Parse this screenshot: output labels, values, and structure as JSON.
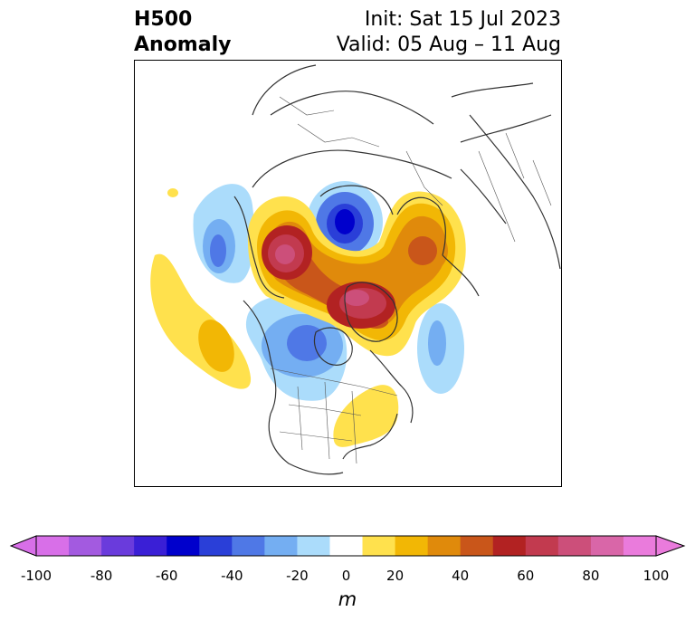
{
  "title": {
    "left_line1": "H500",
    "left_line2": "Anomaly",
    "right_line1": "Init: Sat 15 Jul 2023",
    "right_line2": "Valid: 05 Aug – 11 Aug"
  },
  "colorbar": {
    "unit": "m",
    "ticks": [
      "-100",
      "-80",
      "-60",
      "-40",
      "-20",
      "0",
      "20",
      "40",
      "60",
      "80",
      "100"
    ],
    "levels": [
      -100,
      -90,
      -80,
      -70,
      -60,
      -50,
      -40,
      -30,
      -20,
      -10,
      10,
      20,
      30,
      40,
      50,
      60,
      70,
      80,
      90,
      100
    ],
    "colors": [
      "#d86fe8",
      "#a35ae0",
      "#6a3bdc",
      "#3a1fd6",
      "#0000cc",
      "#2a3fd8",
      "#4f78e6",
      "#74aef2",
      "#abdcfb",
      "#ffffff",
      "#ffe14d",
      "#f2b705",
      "#e08a0b",
      "#c9561a",
      "#b22222",
      "#c23a4f",
      "#cc4f7a",
      "#d966a8",
      "#ea7bdc"
    ],
    "extend_min_color": "#d86fe8",
    "extend_max_color": "#ea7bdc"
  },
  "anomaly_centers": [
    {
      "region": "Gulf of Alaska",
      "sign": "negative",
      "peak": -35
    },
    {
      "region": "Western Canada",
      "sign": "negative",
      "peak": -35
    },
    {
      "region": "Labrador Sea",
      "sign": "negative",
      "peak": -25
    },
    {
      "region": "East Siberian Sea",
      "sign": "positive",
      "peak": 75
    },
    {
      "region": "Kara Sea",
      "sign": "negative",
      "peak": -65
    },
    {
      "region": "Barents Sea",
      "sign": "positive",
      "peak": 50
    },
    {
      "region": "Canadian Arctic Archipelago",
      "sign": "positive",
      "peak": 70
    },
    {
      "region": "Eastern Pacific",
      "sign": "positive",
      "peak": 25
    },
    {
      "region": "Eastern United States",
      "sign": "positive",
      "peak": 15
    }
  ]
}
